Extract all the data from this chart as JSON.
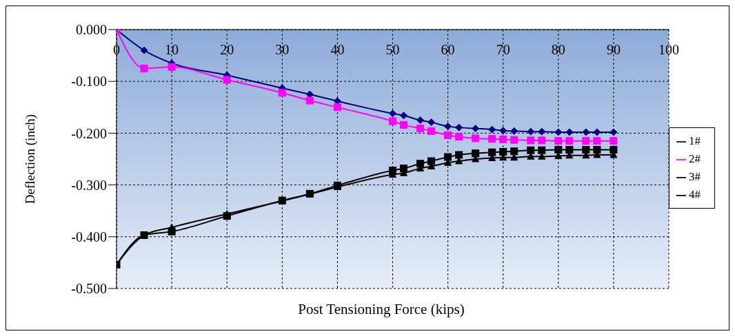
{
  "chart_data": {
    "type": "line",
    "xlabel": "Post Tensioning Force (kips)",
    "ylabel": "Deflection (inch)",
    "x": [
      0,
      5,
      10,
      20,
      30,
      35,
      40,
      50,
      52,
      55,
      57,
      60,
      62,
      65,
      68,
      70,
      72,
      75,
      77,
      80,
      82,
      85,
      87,
      90
    ],
    "series": [
      {
        "name": "1#",
        "color": "#000080",
        "marker": "diamond",
        "values": [
          0,
          -0.04,
          -0.065,
          -0.088,
          -0.113,
          -0.125,
          -0.138,
          -0.162,
          -0.166,
          -0.175,
          -0.179,
          -0.187,
          -0.189,
          -0.191,
          -0.193,
          -0.195,
          -0.196,
          -0.197,
          -0.197,
          -0.198,
          -0.198,
          -0.198,
          -0.198,
          -0.198
        ]
      },
      {
        "name": "2#",
        "color": "#ff00ff",
        "marker": "square",
        "values": [
          0,
          -0.075,
          -0.072,
          -0.097,
          -0.122,
          -0.137,
          -0.15,
          -0.177,
          -0.184,
          -0.191,
          -0.196,
          -0.204,
          -0.207,
          -0.21,
          -0.211,
          -0.212,
          -0.213,
          -0.214,
          -0.214,
          -0.215,
          -0.215,
          -0.215,
          -0.215,
          -0.215
        ]
      },
      {
        "name": "3#",
        "color": "#000000",
        "marker": "square",
        "values": [
          -0.454,
          -0.397,
          -0.39,
          -0.36,
          -0.33,
          -0.317,
          -0.301,
          -0.272,
          -0.268,
          -0.259,
          -0.254,
          -0.246,
          -0.242,
          -0.239,
          -0.237,
          -0.236,
          -0.235,
          -0.233,
          -0.233,
          -0.232,
          -0.232,
          -0.232,
          -0.232,
          -0.232
        ]
      },
      {
        "name": "4#",
        "color": "#000000",
        "marker": "triangle",
        "values": [
          -0.454,
          -0.397,
          -0.382,
          -0.356,
          -0.331,
          -0.318,
          -0.304,
          -0.28,
          -0.277,
          -0.268,
          -0.264,
          -0.257,
          -0.254,
          -0.25,
          -0.248,
          -0.247,
          -0.247,
          -0.245,
          -0.245,
          -0.244,
          -0.243,
          -0.243,
          -0.242,
          -0.242
        ]
      }
    ],
    "xlim": [
      0,
      100
    ],
    "xticks": [
      0,
      10,
      20,
      30,
      40,
      50,
      60,
      70,
      80,
      90,
      100
    ],
    "ylim": [
      -0.5,
      0
    ],
    "yticks": [
      {
        "value": -0.5,
        "label": "-0.500"
      },
      {
        "value": -0.4,
        "label": "-0.400"
      },
      {
        "value": -0.3,
        "label": "-0.300"
      },
      {
        "value": -0.2,
        "label": "-0.200"
      },
      {
        "value": -0.1,
        "label": "-0.100"
      },
      {
        "value": 0,
        "label": "0.000"
      }
    ],
    "grid": true,
    "legend": "right",
    "line_style": "solid"
  }
}
